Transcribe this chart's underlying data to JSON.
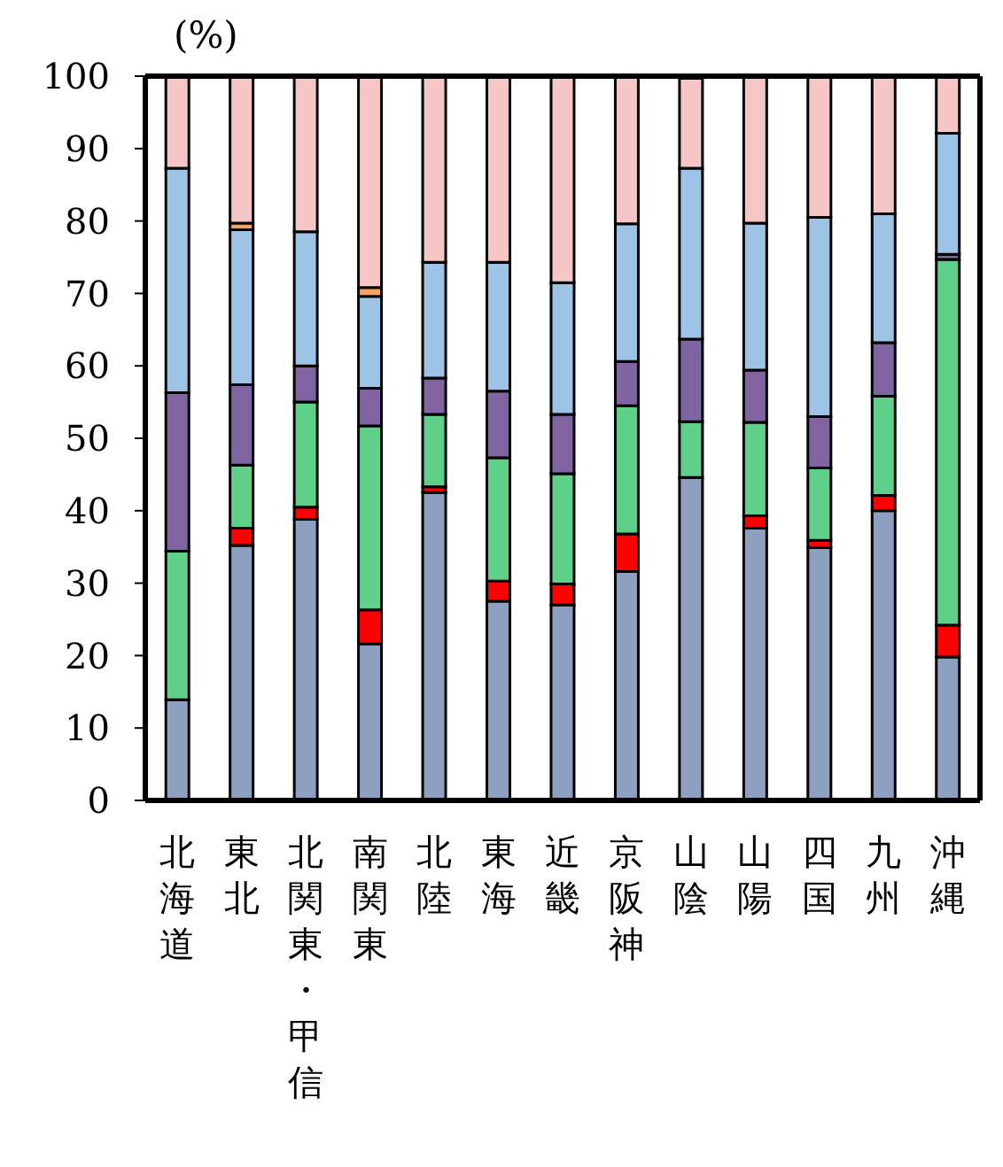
{
  "chart_data": {
    "type": "bar",
    "stacked": true,
    "ylabel": "(%)",
    "categories": [
      "北海道",
      "東北",
      "北関東・甲信",
      "南関東",
      "北陸",
      "東海",
      "近畿",
      "京阪神",
      "山陰",
      "山陽",
      "四国",
      "九州",
      "沖縄"
    ],
    "series": [
      {
        "color": "#8ea0c0",
        "values": [
          13.9,
          35.2,
          38.8,
          21.6,
          42.5,
          27.5,
          27,
          31.6,
          44.6,
          37.6,
          34.9,
          40,
          19.8
        ]
      },
      {
        "color": "#ff0000",
        "values": [
          0,
          2.4,
          1.7,
          4.7,
          0.8,
          2.8,
          2.9,
          5.2,
          null,
          1.7,
          1,
          2.1,
          4.4
        ]
      },
      {
        "color": "#5fd08a",
        "values": [
          20.5,
          8.7,
          14.5,
          25.4,
          10,
          17,
          15.2,
          17.7,
          7.7,
          12.9,
          10,
          13.7,
          50.5
        ]
      },
      {
        "color": "#8064a2",
        "values": [
          21.9,
          11.1,
          5,
          5.2,
          5,
          9.2,
          8.2,
          6.1,
          11.4,
          7.2,
          7.1,
          7.4,
          0.7
        ]
      },
      {
        "color": "#9dc3e6",
        "values": [
          31,
          21.4,
          18.5,
          12.7,
          16,
          17.8,
          18.2,
          19,
          23.6,
          20.3,
          27.5,
          17.8,
          16.7
        ]
      },
      {
        "color": "#f4a460",
        "values": [
          0,
          0.9,
          0,
          1.2,
          0,
          0,
          0,
          0,
          0,
          0,
          0,
          0,
          0
        ]
      },
      {
        "color": "#f6c6c6",
        "values": [
          12.7,
          20.3,
          21.5,
          29.2,
          25.7,
          25.7,
          28.5,
          20.4,
          12.4,
          20.3,
          19.5,
          19,
          7.9
        ]
      }
    ],
    "ylim": [
      0,
      100
    ],
    "yticks": [
      0,
      10,
      20,
      30,
      40,
      50,
      60,
      70,
      80,
      90,
      100
    ],
    "grid": false,
    "legend": false
  }
}
